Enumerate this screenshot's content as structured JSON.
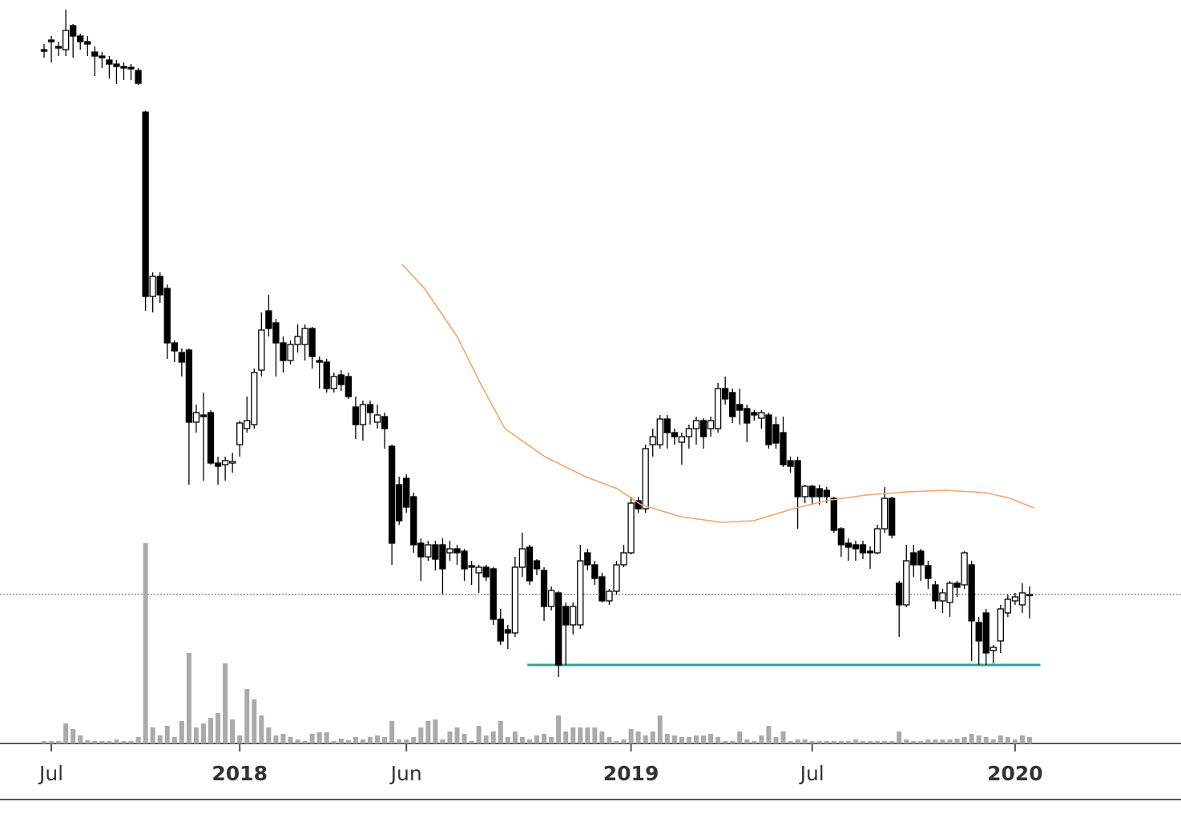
{
  "chart_data": {
    "type": "candlestick",
    "xlim": [
      0,
      136
    ],
    "ylim": [
      0,
      1000
    ],
    "y2lim": [
      0,
      400
    ],
    "xticks": [
      {
        "value": 1,
        "label": "Jul"
      },
      {
        "value": 27,
        "label": "2018",
        "bold": true
      },
      {
        "value": 50,
        "label": "Jun"
      },
      {
        "value": 81,
        "label": "2019",
        "bold": true
      },
      {
        "value": 106,
        "label": "Jul"
      },
      {
        "value": 134,
        "label": "2020",
        "bold": true
      }
    ],
    "colors": {
      "up": "#ffffff",
      "down": "#000000",
      "wick": "#000000",
      "volume": "#aaaaaa"
    },
    "open": [
      938,
      950,
      942,
      938,
      968,
      955,
      948,
      935,
      930,
      925,
      920,
      917,
      916,
      912,
      860,
      630,
      655,
      640,
      572,
      560,
      563,
      473,
      482,
      485,
      422,
      420,
      422,
      445,
      465,
      470,
      538,
      612,
      597,
      572,
      550,
      570,
      570,
      590,
      550,
      548,
      515,
      532,
      530,
      492,
      470,
      495,
      473,
      480,
      443,
      395,
      403,
      380,
      322,
      305,
      320,
      320,
      310,
      315,
      312,
      294,
      285,
      292,
      290,
      227,
      214,
      210,
      292,
      317,
      300,
      288,
      243,
      260,
      243,
      220,
      220,
      310,
      295,
      280,
      250,
      262,
      295,
      310,
      375,
      365,
      445,
      445,
      477,
      460,
      448,
      455,
      465,
      475,
      465,
      465,
      515,
      510,
      495,
      490,
      485,
      478,
      482,
      470,
      460,
      425,
      425,
      380,
      393,
      390,
      388,
      378,
      340,
      322,
      320,
      320,
      312,
      310,
      340,
      378,
      272,
      245,
      310,
      312,
      294,
      270,
      250,
      248,
      272,
      270,
      295,
      223,
      235,
      188,
      200,
      235,
      250,
      245,
      258
    ],
    "high": [
      945,
      955,
      948,
      988,
      970,
      958,
      955,
      942,
      935,
      930,
      925,
      922,
      920,
      915,
      862,
      660,
      660,
      645,
      575,
      565,
      565,
      495,
      510,
      488,
      430,
      430,
      435,
      475,
      505,
      540,
      610,
      632,
      602,
      580,
      575,
      595,
      595,
      592,
      555,
      552,
      535,
      538,
      535,
      505,
      500,
      500,
      495,
      485,
      445,
      405,
      408,
      385,
      328,
      325,
      325,
      328,
      325,
      320,
      315,
      300,
      295,
      295,
      292,
      240,
      220,
      305,
      335,
      320,
      302,
      292,
      268,
      262,
      248,
      248,
      320,
      315,
      300,
      285,
      265,
      300,
      320,
      380,
      380,
      445,
      465,
      482,
      482,
      465,
      460,
      470,
      480,
      478,
      480,
      522,
      530,
      515,
      515,
      495,
      488,
      488,
      485,
      480,
      480,
      430,
      430,
      395,
      395,
      395,
      392,
      380,
      342,
      328,
      325,
      325,
      318,
      345,
      392,
      380,
      275,
      320,
      320,
      315,
      300,
      275,
      265,
      275,
      275,
      312,
      300,
      230,
      240,
      195,
      245,
      258,
      260,
      272,
      268
    ],
    "low": [
      928,
      922,
      930,
      930,
      928,
      938,
      930,
      905,
      915,
      902,
      895,
      900,
      900,
      894,
      612,
      610,
      622,
      552,
      548,
      530,
      395,
      460,
      400,
      420,
      395,
      400,
      410,
      430,
      460,
      465,
      530,
      580,
      530,
      535,
      545,
      560,
      550,
      540,
      515,
      510,
      510,
      512,
      502,
      452,
      450,
      470,
      465,
      440,
      295,
      345,
      360,
      310,
      275,
      300,
      288,
      258,
      300,
      295,
      275,
      270,
      260,
      275,
      220,
      195,
      190,
      205,
      280,
      270,
      282,
      225,
      238,
      155,
      170,
      208,
      215,
      288,
      270,
      248,
      245,
      258,
      292,
      308,
      360,
      360,
      430,
      440,
      440,
      445,
      420,
      440,
      445,
      440,
      455,
      460,
      495,
      472,
      470,
      448,
      475,
      465,
      440,
      440,
      417,
      410,
      340,
      372,
      370,
      370,
      372,
      335,
      305,
      300,
      300,
      302,
      290,
      308,
      335,
      328,
      205,
      242,
      280,
      275,
      265,
      240,
      235,
      230,
      255,
      265,
      175,
      170,
      170,
      172,
      185,
      230,
      245,
      235,
      228
    ],
    "close": [
      936,
      948,
      940,
      962,
      955,
      948,
      945,
      930,
      928,
      920,
      917,
      915,
      914,
      896,
      630,
      655,
      632,
      572,
      562,
      548,
      473,
      485,
      480,
      422,
      418,
      425,
      424,
      472,
      475,
      535,
      588,
      590,
      572,
      550,
      570,
      580,
      590,
      555,
      548,
      515,
      530,
      520,
      505,
      470,
      495,
      485,
      482,
      465,
      322,
      350,
      367,
      320,
      305,
      320,
      302,
      290,
      315,
      310,
      290,
      292,
      292,
      280,
      227,
      200,
      210,
      292,
      315,
      275,
      290,
      243,
      263,
      170,
      220,
      243,
      300,
      295,
      278,
      250,
      262,
      295,
      310,
      372,
      365,
      440,
      455,
      477,
      460,
      455,
      455,
      465,
      475,
      455,
      475,
      515,
      502,
      480,
      488,
      472,
      482,
      485,
      445,
      447,
      420,
      418,
      380,
      393,
      380,
      380,
      380,
      338,
      320,
      317,
      315,
      310,
      310,
      340,
      378,
      332,
      245,
      300,
      295,
      295,
      278,
      250,
      260,
      272,
      267,
      310,
      225,
      200,
      185,
      192,
      240,
      252,
      255,
      260,
      258
    ],
    "volume": [
      3,
      3,
      3,
      25,
      18,
      10,
      4,
      3,
      3,
      3,
      5,
      3,
      3,
      8,
      250,
      20,
      10,
      22,
      8,
      28,
      113,
      20,
      25,
      32,
      38,
      100,
      30,
      10,
      68,
      55,
      35,
      20,
      10,
      12,
      8,
      5,
      3,
      12,
      14,
      14,
      3,
      6,
      4,
      8,
      5,
      8,
      10,
      8,
      28,
      5,
      5,
      8,
      20,
      28,
      30,
      5,
      15,
      20,
      12,
      3,
      22,
      10,
      15,
      28,
      8,
      15,
      8,
      5,
      10,
      12,
      8,
      35,
      15,
      20,
      20,
      20,
      20,
      15,
      8,
      3,
      5,
      18,
      15,
      10,
      15,
      35,
      12,
      10,
      8,
      8,
      10,
      10,
      12,
      8,
      3,
      3,
      15,
      5,
      3,
      10,
      22,
      8,
      15,
      3,
      5,
      5,
      3,
      3,
      3,
      3,
      3,
      3,
      5,
      3,
      3,
      3,
      3,
      3,
      15,
      5,
      3,
      3,
      5,
      5,
      5,
      5,
      6,
      8,
      12,
      10,
      8,
      5,
      10,
      8,
      5,
      10,
      8
    ],
    "moving_average": {
      "color": "#f4a36b",
      "x": [
        49.4,
        52.5,
        57,
        60.3,
        63.6,
        69.1,
        74.7,
        79.1,
        82.4,
        87.9,
        93.5,
        97.9,
        103.4,
        107.9,
        113.4,
        118.9,
        124.4,
        130,
        133.3,
        136.6
      ],
      "values": [
        670,
        640,
        580,
        520,
        465,
        430,
        405,
        390,
        370,
        355,
        348,
        350,
        365,
        375,
        382,
        386,
        388,
        385,
        378,
        366
      ]
    },
    "lines": [
      {
        "value": 258,
        "style": "dotted",
        "color": "#555555"
      },
      {
        "value": 170,
        "from": 66.7,
        "to": 137.5,
        "color": "#26a69a"
      }
    ]
  }
}
